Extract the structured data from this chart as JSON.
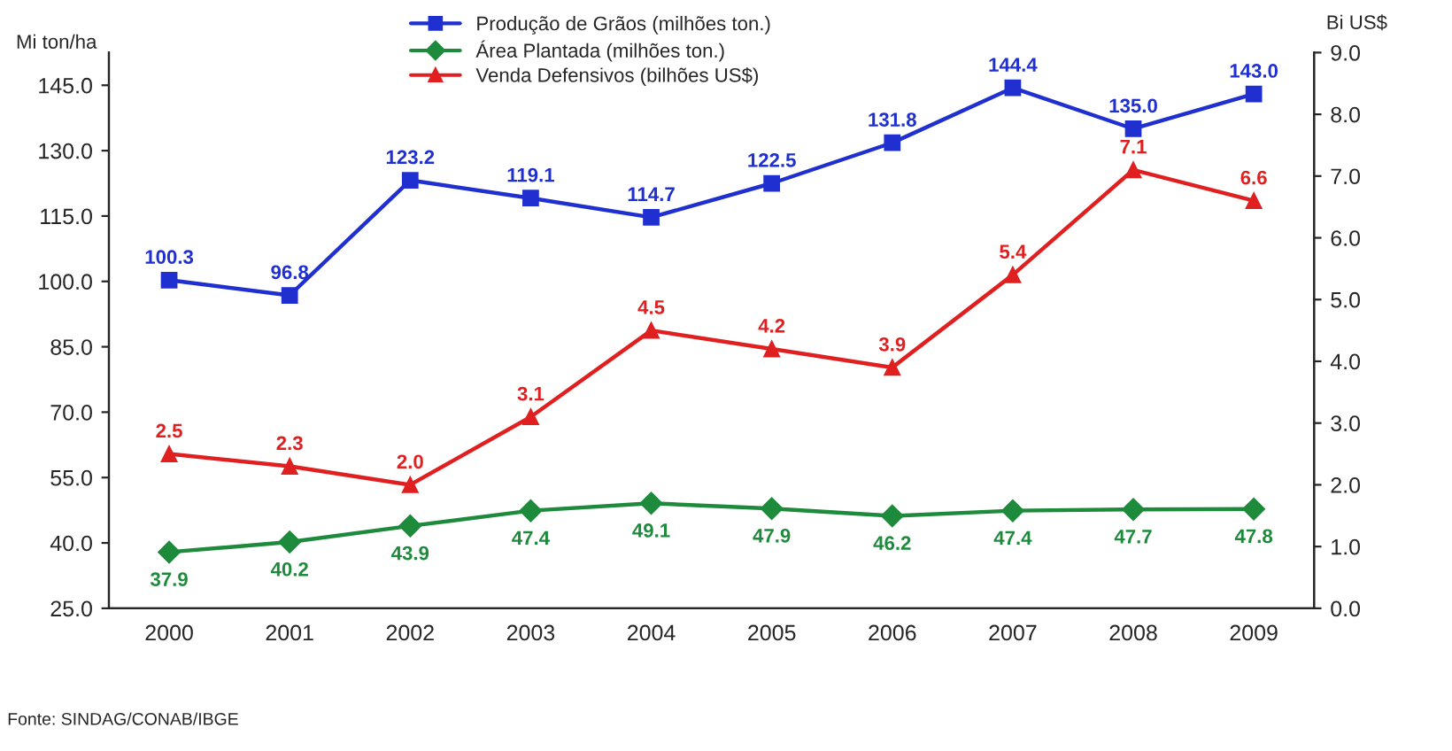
{
  "chart_data": {
    "type": "line",
    "categories": [
      "2000",
      "2001",
      "2002",
      "2003",
      "2004",
      "2005",
      "2006",
      "2007",
      "2008",
      "2009"
    ],
    "series": [
      {
        "name": "Produção de Grãos (milhões ton.)",
        "color": "#1f2fd0",
        "marker": "square",
        "values": [
          100.3,
          96.8,
          123.2,
          119.1,
          114.7,
          122.5,
          131.8,
          144.4,
          135.0,
          143.0
        ],
        "value_labels": [
          "100.3",
          "96.8",
          "123.2",
          "119.1",
          "114.7",
          "122.5",
          "131.8",
          "144.4",
          "135.0",
          "143.0"
        ]
      },
      {
        "name": "Área Plantada (milhões ton.)",
        "color": "#1e8a3c",
        "marker": "diamond",
        "values": [
          37.9,
          40.2,
          43.9,
          47.4,
          49.1,
          47.9,
          46.2,
          47.4,
          47.7,
          47.8
        ],
        "value_labels": [
          "37.9",
          "40.2",
          "43.9",
          "47.4",
          "49.1",
          "47.9",
          "46.2",
          "47.4",
          "47.7",
          "47.8"
        ]
      },
      {
        "name": "Venda Defensivos (bilhões US$)",
        "color": "#e02020",
        "marker": "triangle",
        "axis": "y2",
        "values": [
          2.5,
          2.3,
          2.0,
          3.1,
          4.5,
          4.2,
          3.9,
          5.4,
          7.1,
          6.6
        ],
        "value_labels": [
          "2.5",
          "2.3",
          "2.0",
          "3.1",
          "4.5",
          "4.2",
          "3.9",
          "5.4",
          "7.1",
          "6.6"
        ]
      }
    ],
    "ylabel": "Mi ton/ha",
    "y2label": "Bi US$",
    "ylim": [
      25,
      152.5
    ],
    "yticks": [
      {
        "value": 25,
        "label": "25.0"
      },
      {
        "value": 40,
        "label": "40.0"
      },
      {
        "value": 55,
        "label": "55.0"
      },
      {
        "value": 70,
        "label": "70.0"
      },
      {
        "value": 85,
        "label": "85.0"
      },
      {
        "value": 100,
        "label": "100.0"
      },
      {
        "value": 115,
        "label": "115.0"
      },
      {
        "value": 130,
        "label": "130.0"
      },
      {
        "value": 145,
        "label": "145.0"
      }
    ],
    "y2lim": [
      0,
      9
    ],
    "y2ticks": [
      {
        "value": 0,
        "label": "0.0"
      },
      {
        "value": 1,
        "label": "1.0"
      },
      {
        "value": 2,
        "label": "2.0"
      },
      {
        "value": 3,
        "label": "3.0"
      },
      {
        "value": 4,
        "label": "4.0"
      },
      {
        "value": 5,
        "label": "5.0"
      },
      {
        "value": 6,
        "label": "6.0"
      },
      {
        "value": 7,
        "label": "7.0"
      },
      {
        "value": 8,
        "label": "8.0"
      },
      {
        "value": 9,
        "label": "9.0"
      }
    ],
    "legend": "top",
    "grid": false,
    "line_style": "solid",
    "annotations": [
      "Fonte: SINDAG/CONAB/IBGE"
    ]
  }
}
